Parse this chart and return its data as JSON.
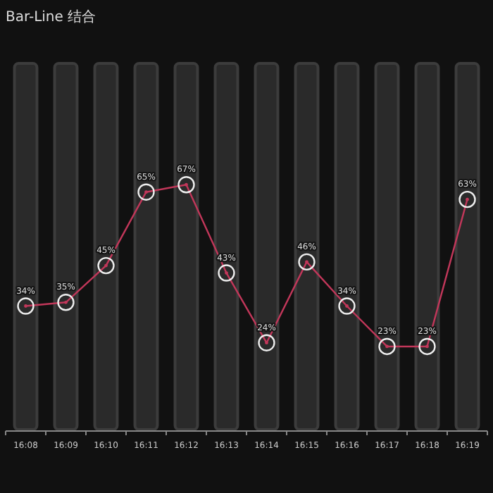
{
  "chart_data": {
    "type": "bar",
    "title": "Bar-Line 结合",
    "categories": [
      "16:08",
      "16:09",
      "16:10",
      "16:11",
      "16:12",
      "16:13",
      "16:14",
      "16:15",
      "16:16",
      "16:17",
      "16:18",
      "16:19"
    ],
    "marker": "circle",
    "series": [
      {
        "color": "#2a2a2a",
        "values": [
          100,
          100,
          100,
          100,
          100,
          100,
          100,
          100,
          100,
          100,
          100,
          100
        ]
      },
      {
        "type": "line",
        "color": "#c2375a",
        "values": [
          34,
          35,
          45,
          65,
          67,
          43,
          24,
          46,
          34,
          23,
          23,
          63
        ],
        "value_labels": [
          "34%",
          "35%",
          "45%",
          "65%",
          "67%",
          "43%",
          "24%",
          "46%",
          "34%",
          "23%",
          "23%",
          "63%"
        ]
      }
    ]
  }
}
